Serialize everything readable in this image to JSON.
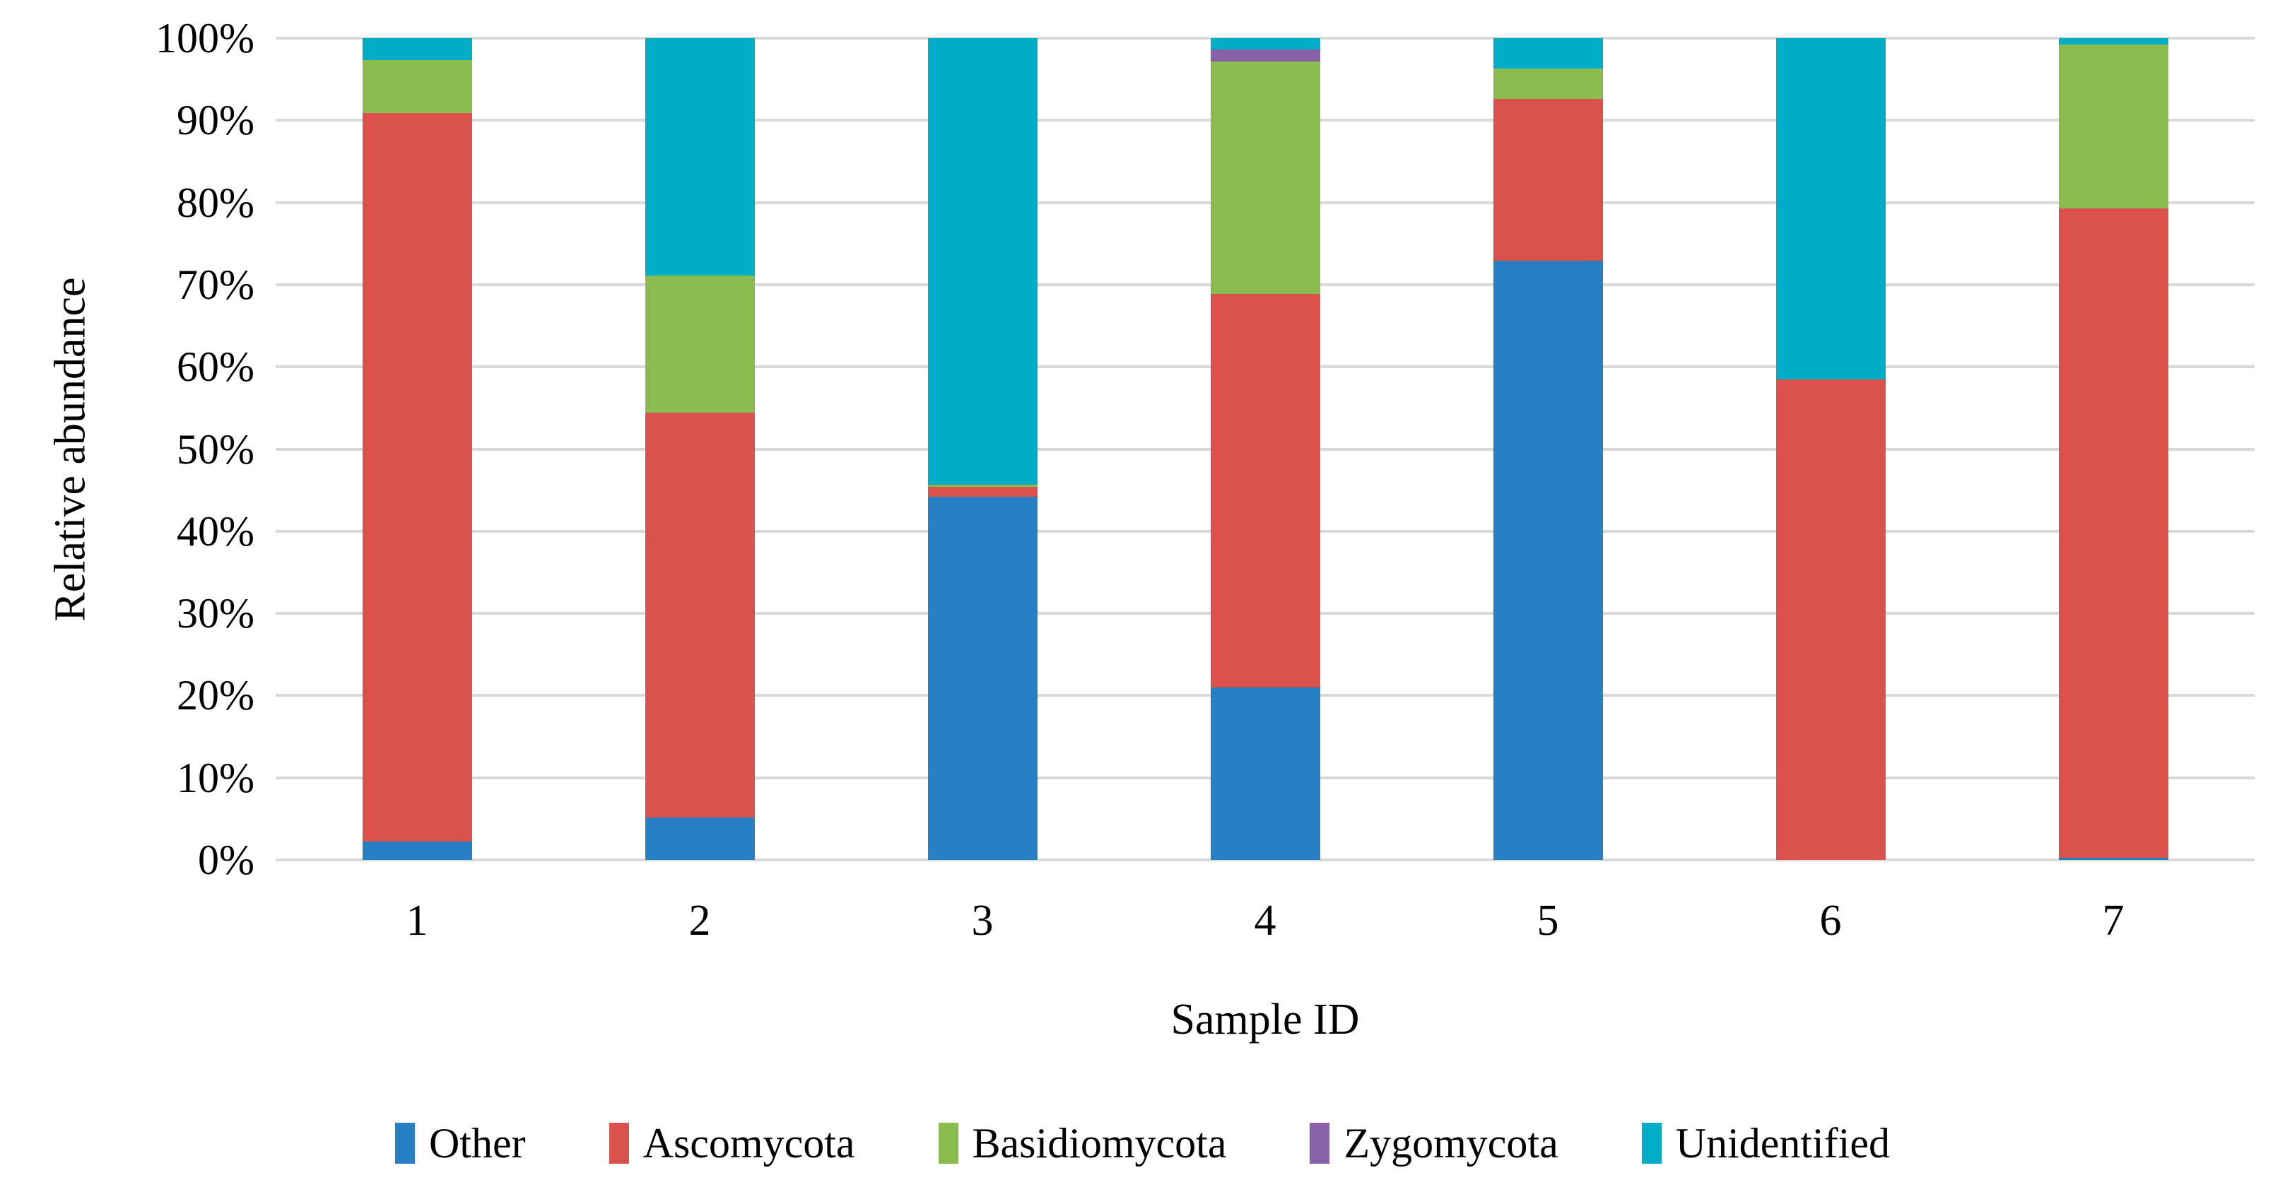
{
  "chart_data": {
    "type": "stacked-bar",
    "title": "",
    "xlabel": "Sample ID",
    "ylabel": "Relative abundance",
    "categories": [
      "1",
      "2",
      "3",
      "4",
      "5",
      "6",
      "7"
    ],
    "y_ticks": [
      "0%",
      "10%",
      "20%",
      "30%",
      "40%",
      "50%",
      "60%",
      "70%",
      "80%",
      "90%",
      "100%"
    ],
    "ylim": [
      0,
      100
    ],
    "unit": "percent",
    "grid": "horizontal",
    "legend_position": "bottom",
    "series": [
      {
        "name": "Other",
        "color": "#2680c3",
        "values": [
          2.2,
          5.2,
          44.2,
          21.0,
          72.9,
          0.0,
          0.3
        ]
      },
      {
        "name": "Ascomycota",
        "color": "#db514c",
        "values": [
          88.7,
          49.2,
          1.2,
          47.9,
          19.7,
          58.5,
          79.0
        ]
      },
      {
        "name": "Basidiomycota",
        "color": "#8abb4f",
        "values": [
          6.4,
          16.7,
          0.3,
          28.3,
          3.7,
          0.0,
          19.9
        ]
      },
      {
        "name": "Zygomycota",
        "color": "#8961a8",
        "values": [
          0.0,
          0.0,
          0.0,
          1.4,
          0.0,
          0.0,
          0.0
        ]
      },
      {
        "name": "Unidentified",
        "color": "#00adc6",
        "values": [
          2.7,
          28.9,
          54.3,
          1.4,
          3.7,
          41.5,
          0.8
        ]
      }
    ]
  },
  "colors": {
    "gridline": "#d9d9d9",
    "text": "#000000",
    "background": "#ffffff"
  }
}
